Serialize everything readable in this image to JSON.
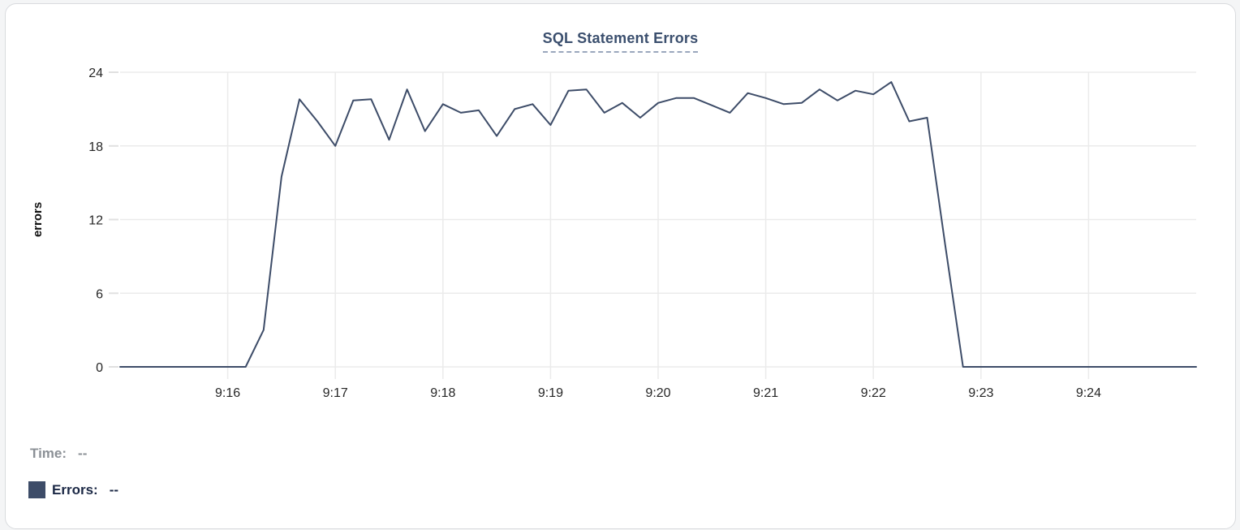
{
  "chart_data": {
    "type": "line",
    "title": "SQL Statement Errors",
    "xlabel": "",
    "ylabel": "errors",
    "ylim": [
      0,
      24
    ],
    "y_ticks": [
      0,
      6,
      12,
      18,
      24
    ],
    "x_domain": [
      "9:15:00",
      "9:25:00"
    ],
    "x_ticks": [
      "9:16",
      "9:17",
      "9:18",
      "9:19",
      "9:20",
      "9:21",
      "9:22",
      "9:23",
      "9:24"
    ],
    "grid": true,
    "legend_position": "bottom-left",
    "series": [
      {
        "name": "Errors",
        "color": "#3d4c68",
        "points": [
          [
            "9:15:00",
            0
          ],
          [
            "9:15:10",
            0
          ],
          [
            "9:15:20",
            0
          ],
          [
            "9:15:30",
            0
          ],
          [
            "9:15:40",
            0
          ],
          [
            "9:15:50",
            0
          ],
          [
            "9:16:00",
            0
          ],
          [
            "9:16:10",
            0
          ],
          [
            "9:16:20",
            3
          ],
          [
            "9:16:30",
            15.5
          ],
          [
            "9:16:40",
            21.8
          ],
          [
            "9:16:50",
            20
          ],
          [
            "9:17:00",
            18
          ],
          [
            "9:17:10",
            21.7
          ],
          [
            "9:17:20",
            21.8
          ],
          [
            "9:17:30",
            18.5
          ],
          [
            "9:17:40",
            22.6
          ],
          [
            "9:17:50",
            19.2
          ],
          [
            "9:18:00",
            21.4
          ],
          [
            "9:18:10",
            20.7
          ],
          [
            "9:18:20",
            20.9
          ],
          [
            "9:18:30",
            18.8
          ],
          [
            "9:18:40",
            21
          ],
          [
            "9:18:50",
            21.4
          ],
          [
            "9:19:00",
            19.7
          ],
          [
            "9:19:10",
            22.5
          ],
          [
            "9:19:20",
            22.6
          ],
          [
            "9:19:30",
            20.7
          ],
          [
            "9:19:40",
            21.5
          ],
          [
            "9:19:50",
            20.3
          ],
          [
            "9:20:00",
            21.5
          ],
          [
            "9:20:10",
            21.9
          ],
          [
            "9:20:20",
            21.9
          ],
          [
            "9:20:30",
            21.3
          ],
          [
            "9:20:40",
            20.7
          ],
          [
            "9:20:50",
            22.3
          ],
          [
            "9:21:00",
            21.9
          ],
          [
            "9:21:10",
            21.4
          ],
          [
            "9:21:20",
            21.5
          ],
          [
            "9:21:30",
            22.6
          ],
          [
            "9:21:40",
            21.7
          ],
          [
            "9:21:50",
            22.5
          ],
          [
            "9:22:00",
            22.2
          ],
          [
            "9:22:10",
            23.2
          ],
          [
            "9:22:20",
            20
          ],
          [
            "9:22:30",
            20.3
          ],
          [
            "9:22:40",
            10
          ],
          [
            "9:22:50",
            0
          ],
          [
            "9:23:00",
            0
          ],
          [
            "9:23:10",
            0
          ],
          [
            "9:23:20",
            0
          ],
          [
            "9:23:30",
            0
          ],
          [
            "9:23:40",
            0
          ],
          [
            "9:23:50",
            0
          ],
          [
            "9:24:00",
            0
          ],
          [
            "9:24:10",
            0
          ],
          [
            "9:24:20",
            0
          ],
          [
            "9:24:30",
            0
          ],
          [
            "9:24:40",
            0
          ],
          [
            "9:24:50",
            0
          ],
          [
            "9:25:00",
            0
          ]
        ]
      }
    ]
  },
  "legend": {
    "time_label": "Time:",
    "time_value": "--",
    "errors_label": "Errors:",
    "errors_value": "--"
  },
  "colors": {
    "line": "#3d4c68",
    "swatch": "#3d4c68",
    "title": "#3b4f6e",
    "title_underline": "#9aa7bd",
    "time_text": "#8b9096",
    "errors_text": "#1b2845",
    "tick_text": "#262626",
    "grid": "#ebebeb",
    "tick_mark": "#e0e0e0",
    "card_border": "#d9dbde",
    "card_bg": "#ffffff",
    "page_bg": "#f4f5f6"
  }
}
